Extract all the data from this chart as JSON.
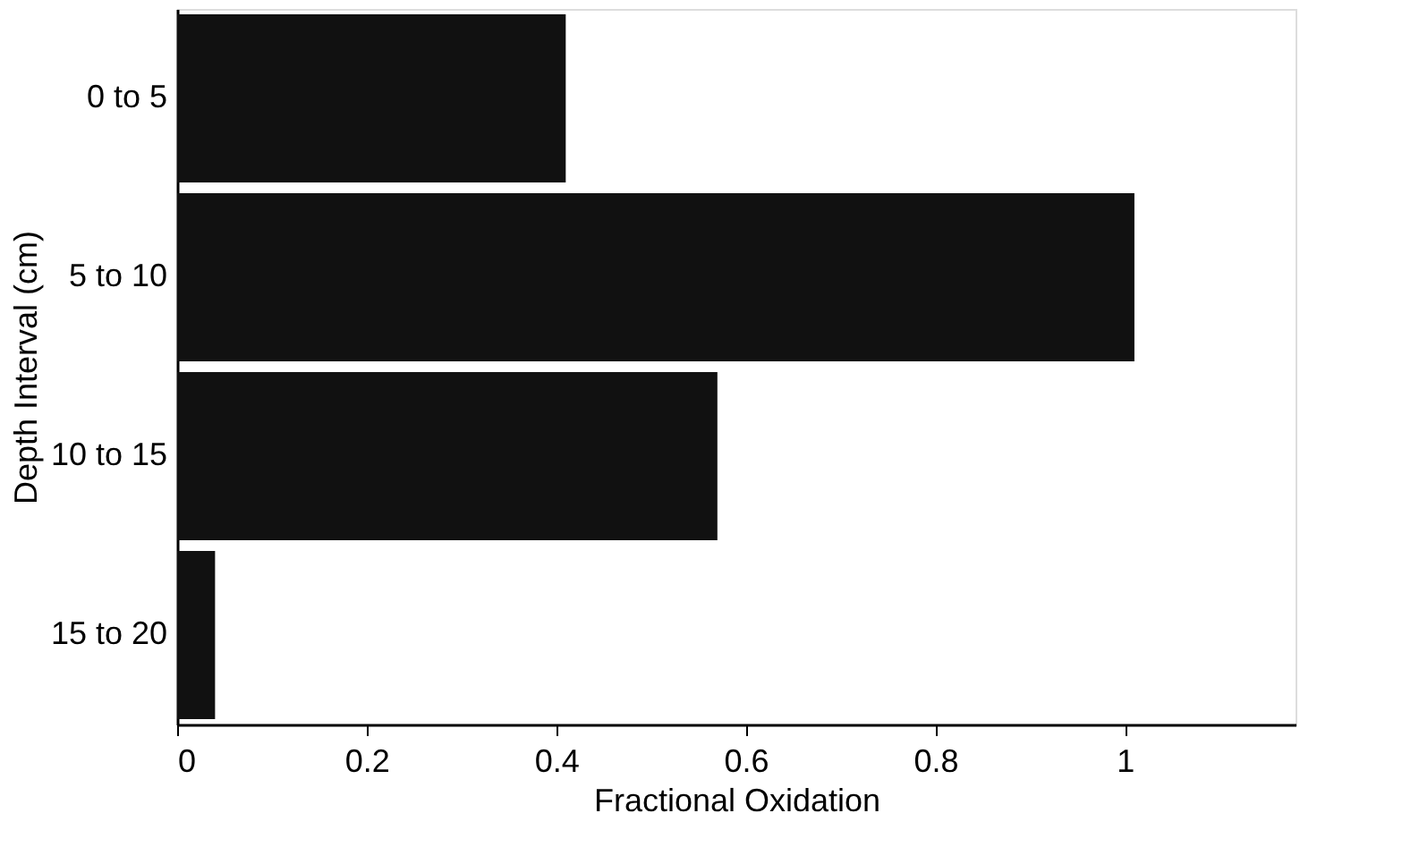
{
  "chart_data": {
    "type": "bar",
    "orientation": "horizontal",
    "xlabel": "Fractional Oxidation",
    "ylabel": "Depth Interval (cm)",
    "categories": [
      "0 to 5",
      "5 to 10",
      "10 to 15",
      "15 to 20"
    ],
    "values": [
      0.41,
      1.01,
      0.57,
      0.04
    ],
    "color": "#111111",
    "xlim": [
      0,
      1.18
    ],
    "xticks": [
      0,
      0.2,
      0.4,
      0.6,
      0.8,
      1
    ],
    "grid": false
  }
}
